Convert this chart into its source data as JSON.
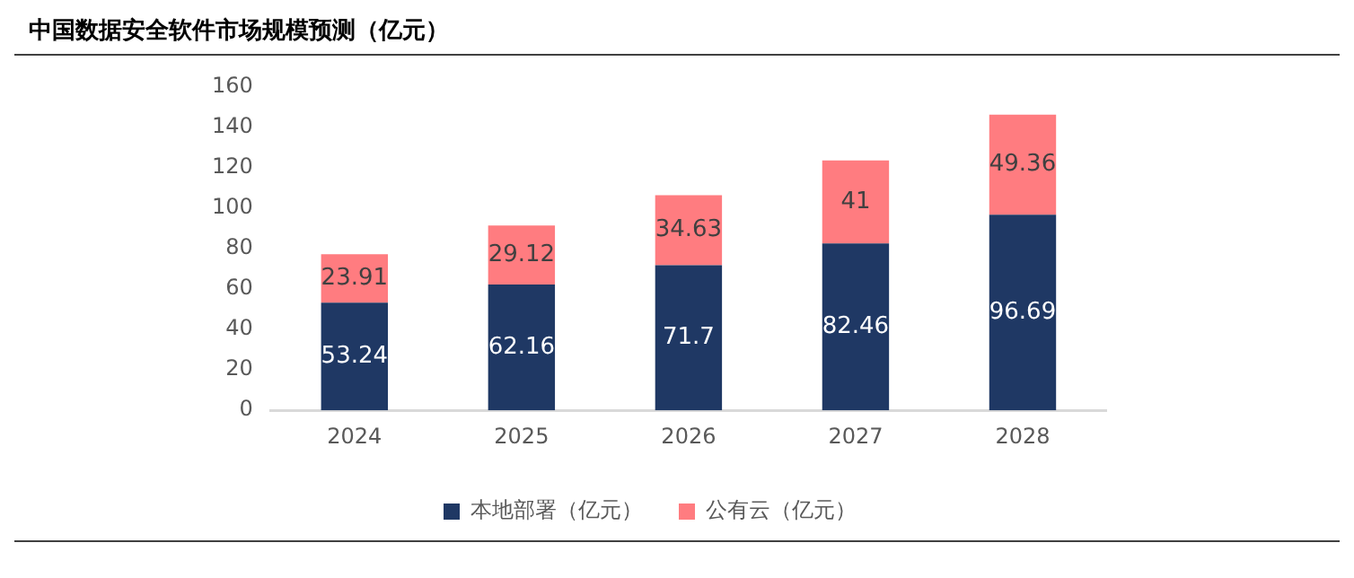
{
  "chart_data": {
    "type": "bar",
    "title": "中国数据安全软件市场规模预测（亿元）",
    "categories": [
      "2024",
      "2025",
      "2026",
      "2027",
      "2028"
    ],
    "stacked": true,
    "series": [
      {
        "name": "本地部署（亿元）",
        "color": "#1f3864",
        "values": [
          53.24,
          62.16,
          71.7,
          82.46,
          96.69
        ]
      },
      {
        "name": "公有云（亿元）",
        "color": "#ff7c80",
        "values": [
          23.91,
          29.12,
          34.63,
          41,
          49.36
        ]
      }
    ],
    "ylim": [
      0,
      160
    ],
    "yticks": [
      0,
      20,
      40,
      60,
      80,
      100,
      120,
      140,
      160
    ],
    "grid": false,
    "legend": "bottom",
    "data_labels": true
  }
}
